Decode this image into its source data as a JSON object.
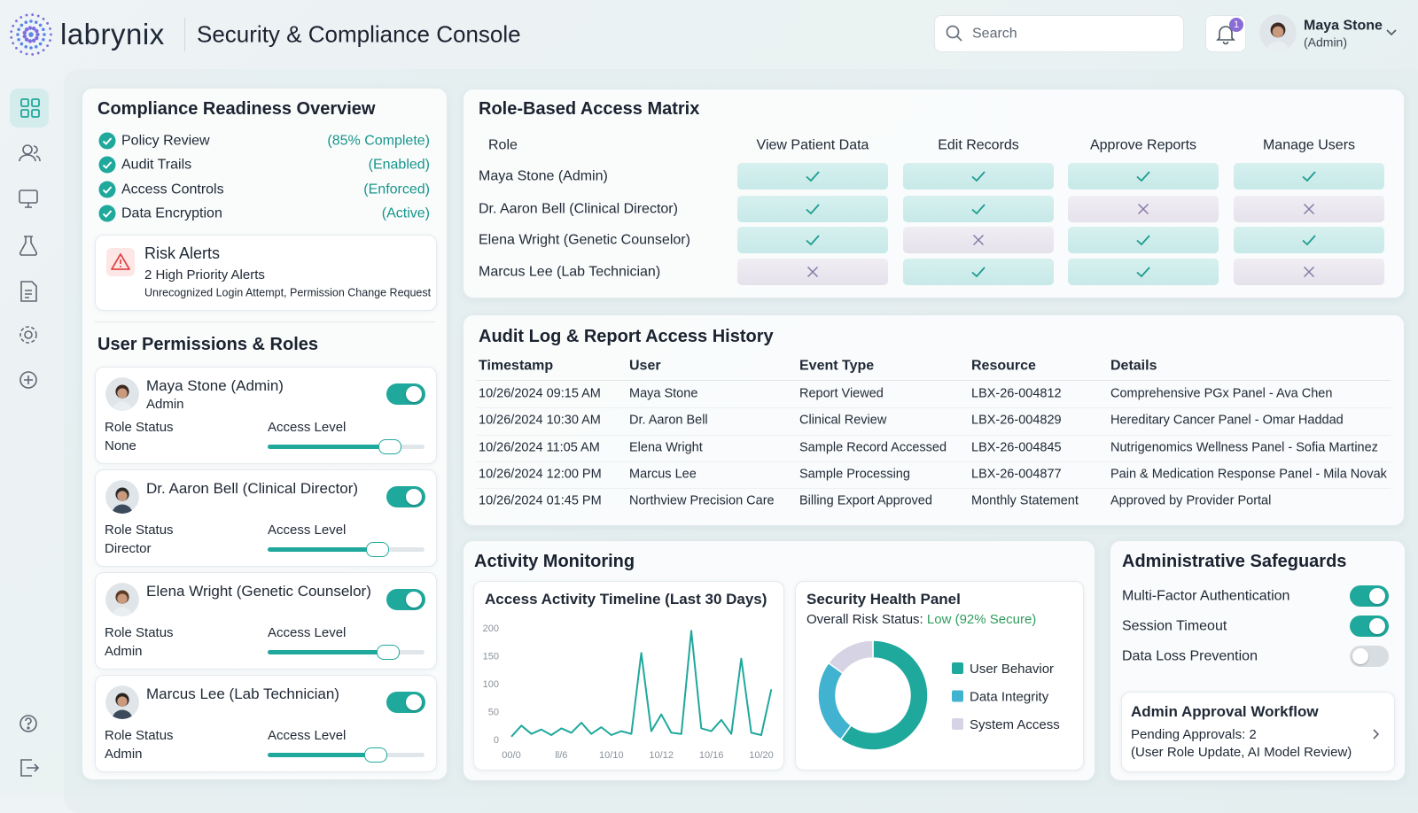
{
  "header": {
    "brand": "labrynix",
    "title": "Security & Compliance Console",
    "search": "Search",
    "notifications": 1,
    "user": {
      "name": "Maya Stone",
      "role": "(Admin)"
    }
  },
  "compliance": {
    "title": "Compliance Readiness Overview",
    "items": [
      {
        "label": "Policy Review",
        "status": "(85% Complete)"
      },
      {
        "label": "Audit Trails",
        "status": "(Enabled)"
      },
      {
        "label": "Access Controls",
        "status": "(Enforced)"
      },
      {
        "label": "Data Encryption",
        "status": "(Active)"
      }
    ],
    "risk": {
      "title": "Risk Alerts",
      "summary": "2 High Priority Alerts",
      "details": "Unrecognized Login Attempt, Permission Change Request"
    }
  },
  "permissions": {
    "title": "User Permissions & Roles",
    "role_status_label": "Role Status",
    "access_level_label": "Access Level",
    "access_level_range": [
      0,
      100
    ],
    "users": [
      {
        "name": "Maya Stone (Admin)",
        "subtitle": "Admin",
        "role_status": "None",
        "enabled": true,
        "access_level": 78
      },
      {
        "name": "Dr. Aaron Bell (Clinical Director)",
        "role_status": "Director",
        "enabled": true,
        "access_level": 70
      },
      {
        "name": "Elena Wright (Genetic Counselor)",
        "role_status": "Admin",
        "enabled": true,
        "access_level": 77
      },
      {
        "name": "Marcus Lee (Lab Technician)",
        "role_status": "Admin",
        "enabled": true,
        "access_level": 69
      }
    ]
  },
  "access_matrix": {
    "title": "Role-Based Access Matrix",
    "columns": [
      "Role",
      "View Patient Data",
      "Edit Records",
      "Approve Reports",
      "Manage Users"
    ],
    "rows": [
      {
        "role": "Maya Stone (Admin)",
        "permissions": [
          true,
          true,
          true,
          true
        ]
      },
      {
        "role": "Dr. Aaron Bell (Clinical Director)",
        "permissions": [
          true,
          true,
          false,
          false
        ]
      },
      {
        "role": "Elena Wright (Genetic Counselor)",
        "permissions": [
          true,
          false,
          true,
          true
        ]
      },
      {
        "role": "Marcus Lee (Lab Technician)",
        "permissions": [
          false,
          true,
          true,
          false
        ]
      }
    ]
  },
  "audit": {
    "title": "Audit Log & Report Access History",
    "columns": [
      "Timestamp",
      "User",
      "Event Type",
      "Resource",
      "Details"
    ],
    "rows": [
      [
        "10/26/2024 09:15 AM",
        "Maya Stone",
        "Report Viewed",
        "LBX-26-004812",
        "Comprehensive PGx Panel - Ava Chen"
      ],
      [
        "10/26/2024 10:30 AM",
        "Dr. Aaron Bell",
        "Clinical Review",
        "LBX-26-004829",
        "Hereditary Cancer Panel - Omar Haddad"
      ],
      [
        "10/26/2024 11:05 AM",
        "Elena Wright",
        "Sample Record Accessed",
        "LBX-26-004845",
        "Nutrigenomics Wellness Panel - Sofia Martinez"
      ],
      [
        "10/26/2024 12:00 PM",
        "Marcus Lee",
        "Sample Processing",
        "LBX-26-004877",
        "Pain & Medication Response Panel - Mila Novak"
      ],
      [
        "10/26/2024 01:45 PM",
        "Northview Precision Care",
        "Billing Export Approved",
        "Monthly Statement",
        "Approved by Provider Portal"
      ]
    ]
  },
  "activity": {
    "title": "Activity Monitoring"
  },
  "chart_data": [
    {
      "type": "line",
      "title": "Access Activity Timeline (Last 30 Days)",
      "categories": [
        "00/0",
        null,
        null,
        null,
        null,
        "ll/6",
        null,
        null,
        null,
        null,
        "10/10",
        null,
        null,
        null,
        null,
        "10/12",
        null,
        null,
        null,
        null,
        "10/16",
        null,
        null,
        null,
        null,
        "10/20",
        null
      ],
      "values": [
        5,
        25,
        10,
        18,
        8,
        20,
        12,
        30,
        10,
        22,
        8,
        15,
        10,
        155,
        15,
        45,
        12,
        10,
        195,
        20,
        15,
        35,
        10,
        145,
        12,
        8,
        90
      ],
      "color": "#1fa89c",
      "ylim": [
        0,
        200
      ],
      "yticks": [
        0,
        50,
        100,
        150,
        200
      ]
    },
    {
      "type": "donut",
      "title": "Security Health Panel",
      "subtitle": "Overall Risk Status:",
      "status": "Low (92% Secure)",
      "categories": [
        "User Behavior",
        "Data Integrity",
        "System Access"
      ],
      "values": [
        60,
        25,
        15
      ],
      "colors": [
        "#1fa89c",
        "#41b2cf",
        "#d6d4e4"
      ]
    }
  ],
  "safeguards": {
    "title": "Administrative Safeguards",
    "items": [
      {
        "label": "Multi-Factor Authentication",
        "enabled": true
      },
      {
        "label": "Session Timeout",
        "enabled": true
      },
      {
        "label": "Data Loss Prevention",
        "enabled": false
      }
    ],
    "workflow": {
      "title": "Admin Approval Workflow",
      "pending": "Pending Approvals: 2",
      "details": "(User Role Update, AI Model Review)"
    }
  }
}
